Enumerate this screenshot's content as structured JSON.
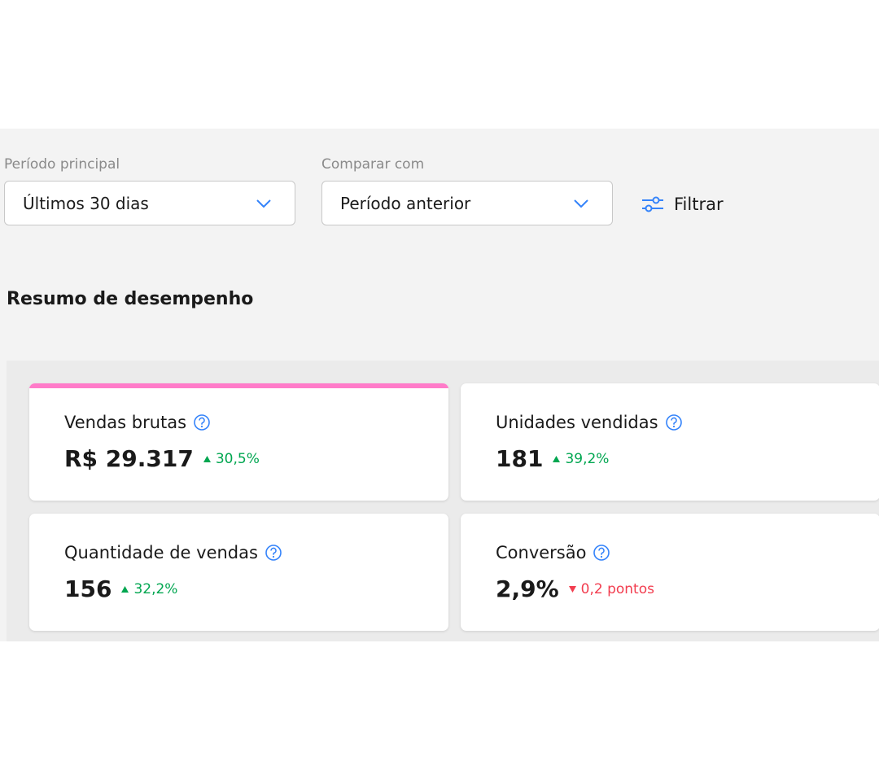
{
  "filters": {
    "main_label": "Período principal",
    "main_value": "Últimos 30 dias",
    "compare_label": "Comparar com",
    "compare_value": "Período anterior",
    "filter_button": "Filtrar"
  },
  "section_title": "Resumo de desempenho",
  "cards": [
    {
      "title": "Vendas brutas",
      "value": "R$ 29.317",
      "change": "30,5%",
      "direction": "up"
    },
    {
      "title": "Unidades vendidas",
      "value": "181",
      "change": "39,2%",
      "direction": "up"
    },
    {
      "title": "Quantidade de vendas",
      "value": "156",
      "change": "32,2%",
      "direction": "up"
    },
    {
      "title": "Conversão",
      "value": "2,9%",
      "change": "0,2 pontos",
      "direction": "down"
    }
  ]
}
